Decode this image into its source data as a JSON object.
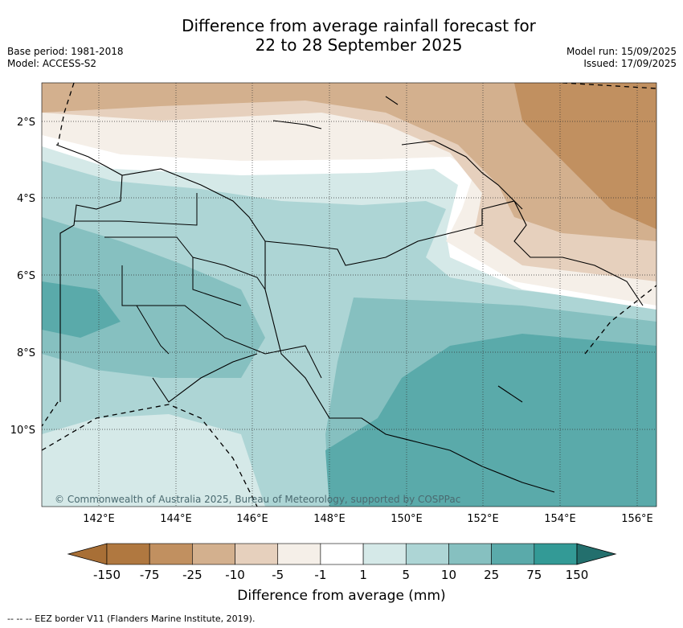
{
  "title_line1": "Difference from average rainfall forecast for",
  "title_line2": "22 to 28 September 2025",
  "meta_left": [
    "Base period: 1981-2018",
    "Model: ACCESS-S2"
  ],
  "meta_right": [
    "Model run: 15/09/2025",
    "Issued: 17/09/2025"
  ],
  "copyright": "© Commonwealth of Australia 2025, Bureau of Meteorology, supported by COSPPac",
  "lat_labels": [
    "2°S",
    "4°S",
    "6°S",
    "8°S",
    "10°S"
  ],
  "lon_labels": [
    "142°E",
    "144°E",
    "146°E",
    "148°E",
    "150°E",
    "152°E",
    "154°E",
    "156°E"
  ],
  "colorbar": {
    "label": "Difference from average (mm)",
    "ticks": [
      "-150",
      "-75",
      "-25",
      "-10",
      "-5",
      "-1",
      "1",
      "5",
      "10",
      "25",
      "75",
      "150"
    ],
    "colors": [
      "#a86f36",
      "#b07840",
      "#c19060",
      "#d3b08e",
      "#e6d0bd",
      "#f5efe8",
      "#ffffff",
      "#d5e9e8",
      "#add5d5",
      "#86c0c0",
      "#5aaaaa",
      "#339a96",
      "#236f6d"
    ]
  },
  "footer": "--  --  -- EEZ border V11 (Flanders Marine Institute, 2019)."
}
